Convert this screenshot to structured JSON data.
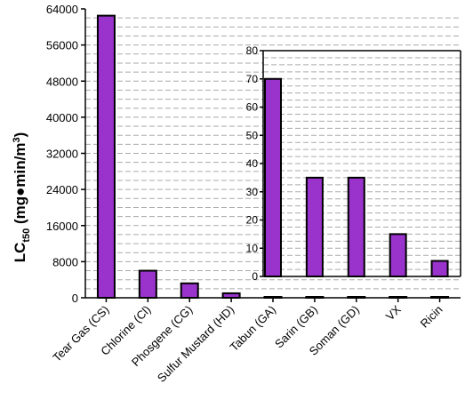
{
  "colors": {
    "bar_fill": "#9933cc",
    "bar_stroke": "#000000",
    "grid": "#aaaaaa",
    "axis": "#000000",
    "background": "#ffffff"
  },
  "chart_data": [
    {
      "type": "bar",
      "title": "",
      "xlabel": "",
      "ylabel": {
        "main": "LC",
        "subscript": "t50",
        "units_prefix": " (mg●min/m",
        "units_sup": "3",
        "units_suffix": ")"
      },
      "ylim": [
        0,
        64000
      ],
      "yticks": [
        "0",
        "8000",
        "16000",
        "24000",
        "32000",
        "40000",
        "48000",
        "56000",
        "64000"
      ],
      "grid": "horizontal dashed, every 2000",
      "categories": [
        "Tear Gas (CS)",
        "Chlorine (Cl)",
        "Phosgene (CG)",
        "Sulfur Mustard (HD)",
        "Tabun (GA)",
        "Sarin (GB)",
        "Soman (GD)",
        "VX",
        "Ricin"
      ],
      "values": [
        62500,
        6000,
        3200,
        1000,
        70,
        35,
        35,
        15,
        5.5
      ]
    },
    {
      "type": "bar",
      "title": "",
      "position": "inset, upper right",
      "ylim": [
        0,
        80
      ],
      "yticks": [
        "0",
        "10",
        "20",
        "30",
        "40",
        "50",
        "60",
        "70",
        "80"
      ],
      "grid": "horizontal dashed, every 2.5",
      "categories": [
        "Tabun (GA)",
        "Sarin (GB)",
        "Soman (GD)",
        "VX",
        "Ricin"
      ],
      "values": [
        70,
        35,
        35,
        15,
        5.5
      ]
    }
  ]
}
